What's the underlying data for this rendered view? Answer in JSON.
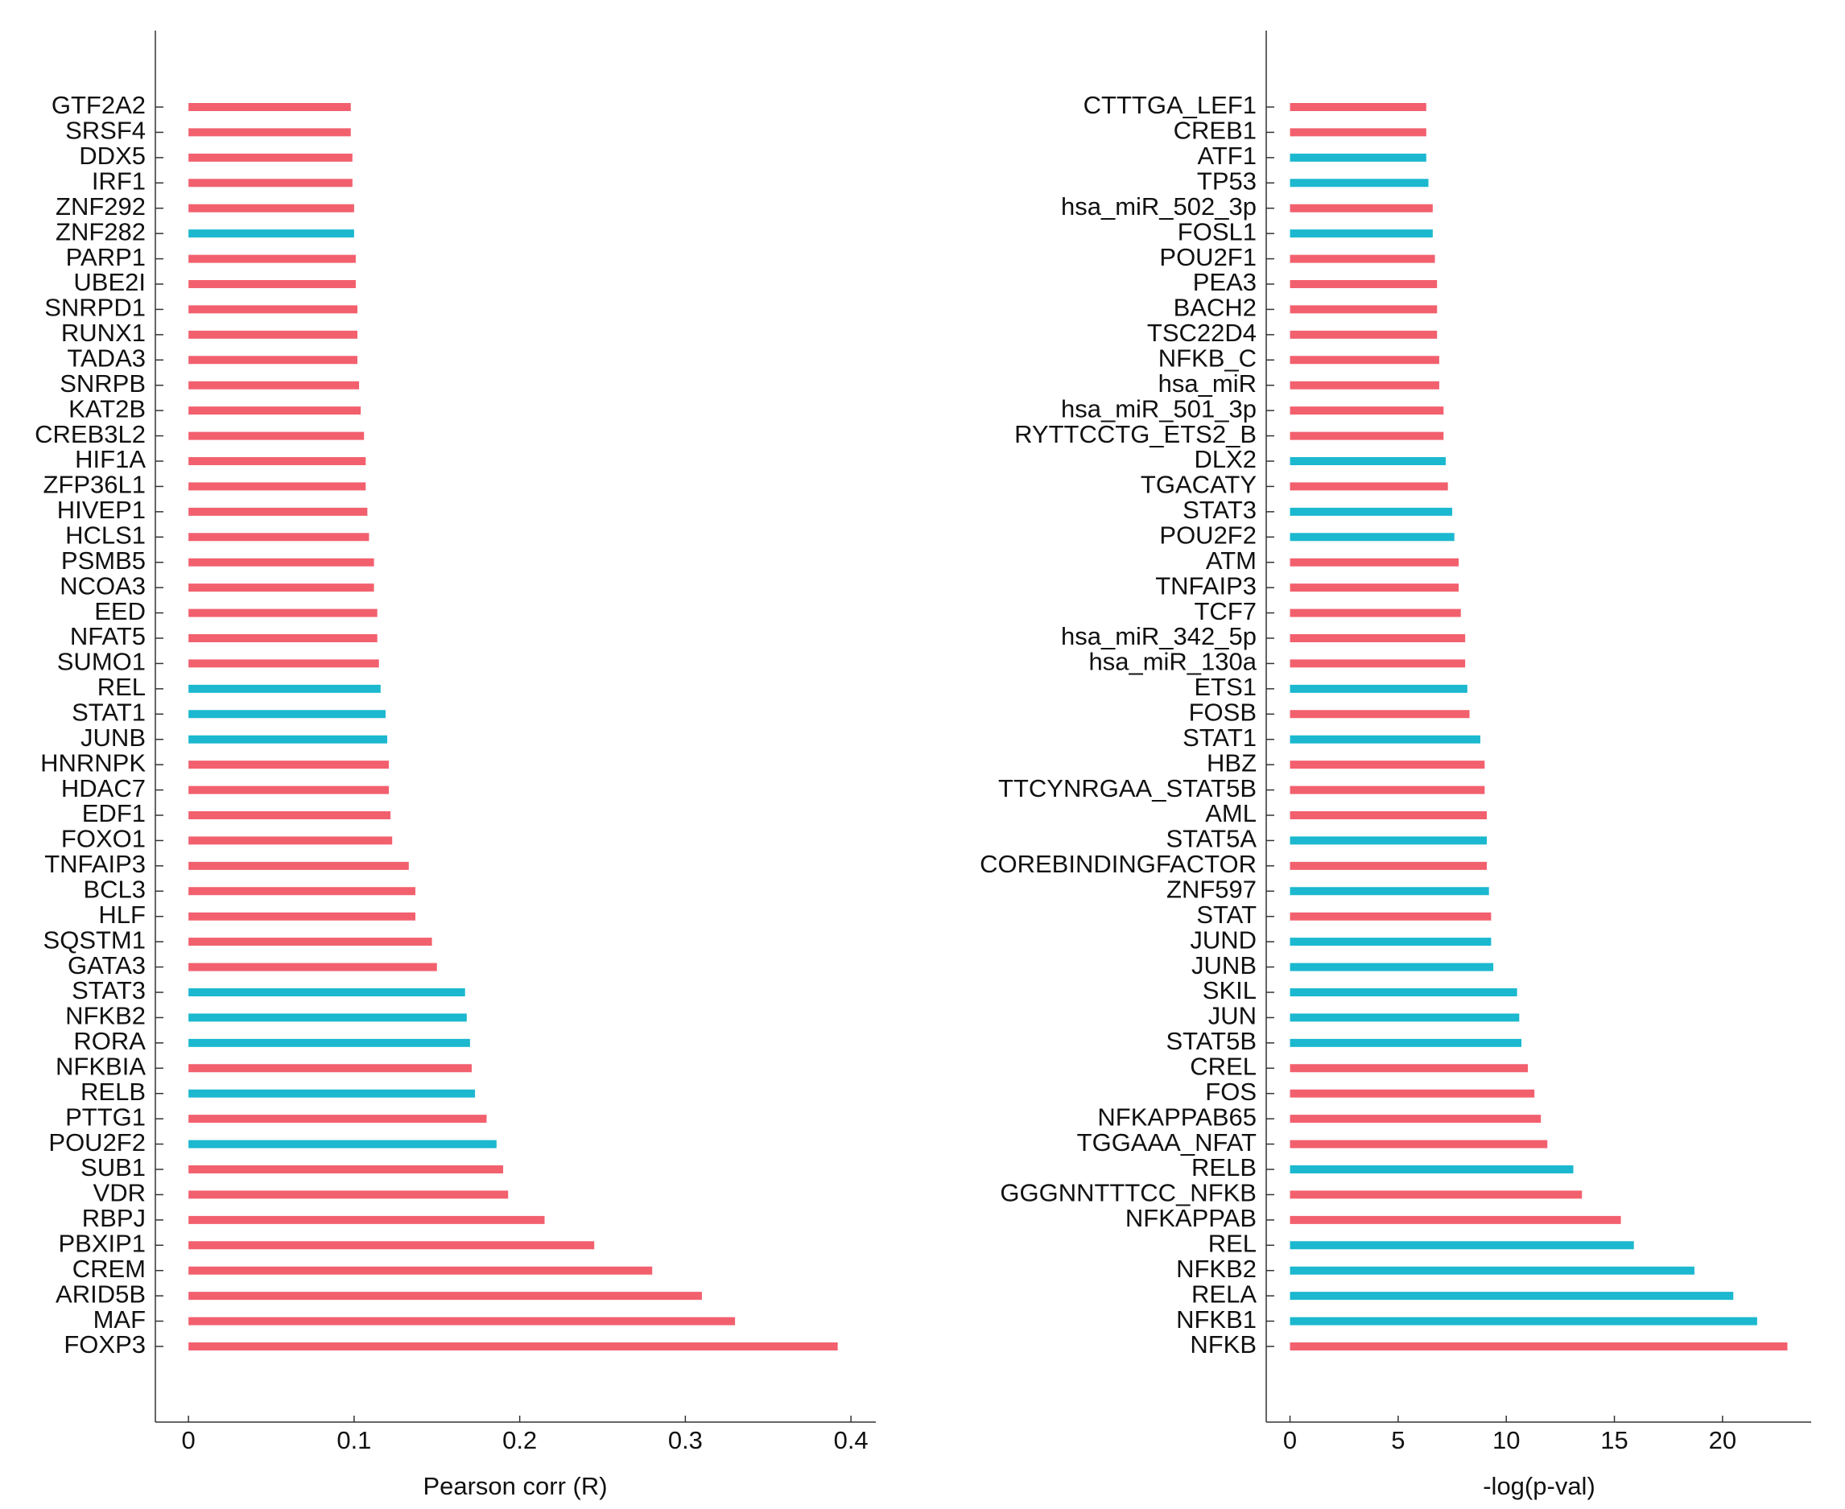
{
  "colors": {
    "positive": "#F2606E",
    "negative": "#1BB8CF",
    "axis": "#333333",
    "text": "#111111"
  },
  "chart_data": [
    {
      "type": "bar",
      "orientation": "horizontal",
      "xlabel": "Pearson corr (R)",
      "xlim": [
        -0.02,
        0.415
      ],
      "xticks": [
        0,
        0.1,
        0.2,
        0.3,
        0.4
      ],
      "xtick_labels": [
        "0",
        "0.1",
        "0.2",
        "0.3",
        "0.4"
      ],
      "categories": [
        "GTF2A2",
        "SRSF4",
        "DDX5",
        "IRF1",
        "ZNF292",
        "ZNF282",
        "PARP1",
        "UBE2I",
        "SNRPD1",
        "RUNX1",
        "TADA3",
        "SNRPB",
        "KAT2B",
        "CREB3L2",
        "HIF1A",
        "ZFP36L1",
        "HIVEP1",
        "HCLS1",
        "PSMB5",
        "NCOA3",
        "EED",
        "NFAT5",
        "SUMO1",
        "REL",
        "STAT1",
        "JUNB",
        "HNRNPK",
        "HDAC7",
        "EDF1",
        "FOXO1",
        "TNFAIP3",
        "BCL3",
        "HLF",
        "SQSTM1",
        "GATA3",
        "STAT3",
        "NFKB2",
        "RORA",
        "NFKBIA",
        "RELB",
        "PTTG1",
        "POU2F2",
        "SUB1",
        "VDR",
        "RBPJ",
        "PBXIP1",
        "CREM",
        "ARID5B",
        "MAF",
        "FOXP3"
      ],
      "values": [
        0.098,
        0.098,
        0.099,
        0.099,
        0.1,
        0.1,
        0.101,
        0.101,
        0.102,
        0.102,
        0.102,
        0.103,
        0.104,
        0.106,
        0.107,
        0.107,
        0.108,
        0.109,
        0.112,
        0.112,
        0.114,
        0.114,
        0.115,
        0.116,
        0.119,
        0.12,
        0.121,
        0.121,
        0.122,
        0.123,
        0.133,
        0.137,
        0.137,
        0.147,
        0.15,
        0.167,
        0.168,
        0.17,
        0.171,
        0.173,
        0.18,
        0.186,
        0.19,
        0.193,
        0.215,
        0.245,
        0.28,
        0.31,
        0.33,
        0.392
      ],
      "groups": [
        "pos",
        "pos",
        "pos",
        "pos",
        "pos",
        "neg",
        "pos",
        "pos",
        "pos",
        "pos",
        "pos",
        "pos",
        "pos",
        "pos",
        "pos",
        "pos",
        "pos",
        "pos",
        "pos",
        "pos",
        "pos",
        "pos",
        "pos",
        "neg",
        "neg",
        "neg",
        "pos",
        "pos",
        "pos",
        "pos",
        "pos",
        "pos",
        "pos",
        "pos",
        "pos",
        "neg",
        "neg",
        "neg",
        "pos",
        "neg",
        "pos",
        "neg",
        "pos",
        "pos",
        "pos",
        "pos",
        "pos",
        "pos",
        "pos",
        "pos"
      ]
    },
    {
      "type": "bar",
      "orientation": "horizontal",
      "xlabel": "-log(p-val)",
      "xlim": [
        -1.1,
        24.1
      ],
      "xticks": [
        0,
        5,
        10,
        15,
        20
      ],
      "xtick_labels": [
        "0",
        "5",
        "10",
        "15",
        "20"
      ],
      "categories": [
        "CTTTGA_LEF1",
        "CREB1",
        "ATF1",
        "TP53",
        "hsa_miR_502_3p",
        "FOSL1",
        "POU2F1",
        "PEA3",
        "BACH2",
        "TSC22D4",
        "NFKB_C",
        "hsa_miR",
        "hsa_miR_501_3p",
        "RYTTCCTG_ETS2_B",
        "DLX2",
        "TGACATY",
        "STAT3",
        "POU2F2",
        "ATM",
        "TNFAIP3",
        "TCF7",
        "hsa_miR_342_5p",
        "hsa_miR_130a",
        "ETS1",
        "FOSB",
        "STAT1",
        "HBZ",
        "TTCYNRGAA_STAT5B",
        "AML",
        "STAT5A",
        "COREBINDINGFACTOR",
        "ZNF597",
        "STAT",
        "JUND",
        "JUNB",
        "SKIL",
        "JUN",
        "STAT5B",
        "CREL",
        "FOS",
        "NFKAPPAB65",
        "TGGAAA_NFAT",
        "RELB",
        "GGGNNTTTCC_NFKB",
        "NFKAPPAB",
        "REL",
        "NFKB2",
        "RELA",
        "NFKB1",
        "NFKB"
      ],
      "values": [
        6.3,
        6.3,
        6.3,
        6.4,
        6.6,
        6.6,
        6.7,
        6.8,
        6.8,
        6.8,
        6.9,
        6.9,
        7.1,
        7.1,
        7.2,
        7.3,
        7.5,
        7.6,
        7.8,
        7.8,
        7.9,
        8.1,
        8.1,
        8.2,
        8.3,
        8.8,
        9.0,
        9.0,
        9.1,
        9.1,
        9.1,
        9.2,
        9.3,
        9.3,
        9.4,
        10.5,
        10.6,
        10.7,
        11.0,
        11.3,
        11.6,
        11.9,
        13.1,
        13.5,
        15.3,
        15.9,
        18.7,
        20.5,
        21.6,
        23.0
      ],
      "groups": [
        "pos",
        "pos",
        "neg",
        "neg",
        "pos",
        "neg",
        "pos",
        "pos",
        "pos",
        "pos",
        "pos",
        "pos",
        "pos",
        "pos",
        "neg",
        "pos",
        "neg",
        "neg",
        "pos",
        "pos",
        "pos",
        "pos",
        "pos",
        "neg",
        "pos",
        "neg",
        "pos",
        "pos",
        "pos",
        "neg",
        "pos",
        "neg",
        "pos",
        "neg",
        "neg",
        "neg",
        "neg",
        "neg",
        "pos",
        "pos",
        "pos",
        "pos",
        "neg",
        "pos",
        "pos",
        "neg",
        "neg",
        "neg",
        "neg",
        "pos"
      ]
    }
  ]
}
